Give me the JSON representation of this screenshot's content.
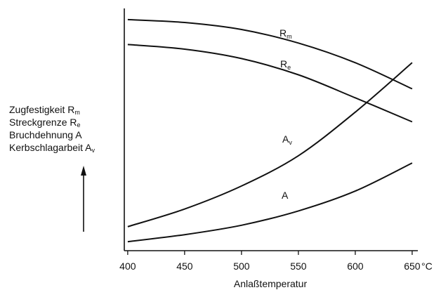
{
  "chart_data": {
    "type": "line",
    "xlabel": "Anlaßtemperatur",
    "x_unit": "°C",
    "x_ticks": [
      400,
      450,
      500,
      550,
      600,
      650
    ],
    "xlim": [
      397,
      655
    ],
    "ylim": [
      0,
      100
    ],
    "y_ticks_shown": false,
    "ylabel_lines": [
      {
        "text": "Zugfestigkeit R",
        "sub": "m"
      },
      {
        "text": "Streckgrenze R",
        "sub": "e"
      },
      {
        "text": "Bruchdehnung A",
        "sub": ""
      },
      {
        "text": "Kerbschlagarbeit A",
        "sub": "v"
      }
    ],
    "series": [
      {
        "name": "Rm",
        "label_main": "R",
        "label_sub": "m",
        "x": [
          400,
          450,
          500,
          550,
          600,
          650
        ],
        "y": [
          95.4,
          94.2,
          91.3,
          85.7,
          77.6,
          66.8
        ]
      },
      {
        "name": "Re",
        "label_main": "R",
        "label_sub": "e",
        "x": [
          400,
          450,
          500,
          550,
          600,
          650
        ],
        "y": [
          85.1,
          83.2,
          79.3,
          72.6,
          63.1,
          53.2
        ]
      },
      {
        "name": "Av",
        "label_main": "A",
        "label_sub": "v",
        "x": [
          400,
          450,
          500,
          550,
          600,
          650
        ],
        "y": [
          9.9,
          17.2,
          26.7,
          39.2,
          57.2,
          77.6
        ]
      },
      {
        "name": "A",
        "label_main": "A",
        "label_sub": "",
        "x": [
          400,
          450,
          500,
          550,
          600,
          650
        ],
        "y": [
          3.7,
          6.6,
          10.5,
          16.4,
          24.6,
          36.2
        ]
      }
    ]
  }
}
